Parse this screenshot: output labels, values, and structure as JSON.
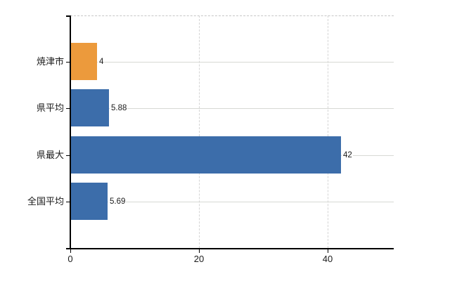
{
  "chart": {
    "background_color": "#ffffff",
    "axis_color": "#000000",
    "horizontal_grid_color": "#d7d9d4",
    "vertical_grid_color": "#d4d4d4",
    "top_border_color": "#c6c6c6",
    "text_color": "#1b1b1b",
    "accent_orange": "#ec9a3c",
    "accent_blue": "#3c6daa"
  },
  "chart_data": {
    "type": "bar",
    "orientation": "horizontal",
    "title": "",
    "categories": [
      "焼津市",
      "県平均",
      "県最大",
      "全国平均"
    ],
    "values": [
      4,
      5.88,
      42,
      5.69
    ],
    "value_labels": [
      "4",
      "5.88",
      "42",
      "5.69"
    ],
    "series": [
      {
        "name": "",
        "values": [
          4,
          5.88,
          42,
          5.69
        ],
        "colors": [
          "#ec9a3c",
          "#3c6daa",
          "#3c6daa",
          "#3c6daa"
        ]
      }
    ],
    "xlabel": "",
    "ylabel": "",
    "xticks": [
      0,
      20,
      40
    ],
    "xtick_labels": [
      "0",
      "20",
      "40"
    ],
    "xlim": [
      0,
      50.3
    ],
    "grid": "on",
    "grid_horizontal_per_category": true,
    "legend_position": "none",
    "highlight_category": "焼津市"
  }
}
